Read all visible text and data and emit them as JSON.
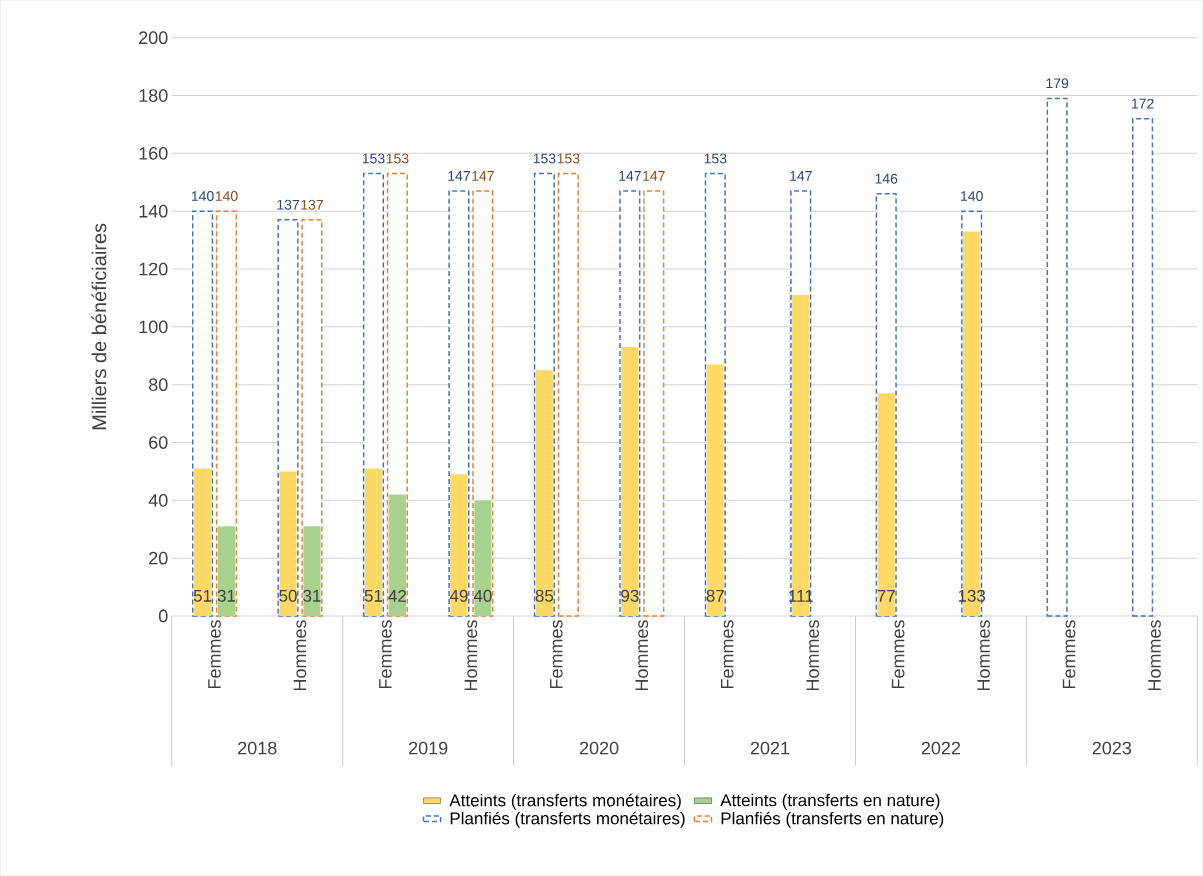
{
  "chart_data": {
    "type": "bar",
    "ylabel": "Milliers de bénéficiaires",
    "categories": [
      "Femmes",
      "Hommes",
      "Femmes",
      "Hommes",
      "Femmes",
      "Hommes",
      "Femmes",
      "Hommes",
      "Femmes",
      "Hommes",
      "Femmes",
      "Hommes"
    ],
    "annotations": [
      "2018",
      "2019",
      "2020",
      "2021",
      "2022",
      "2023"
    ],
    "series": [
      {
        "name": "Atteints (transferts monétaires)",
        "color": "#ffd966",
        "values": [
          51,
          50,
          51,
          49,
          85,
          93,
          87,
          111,
          77,
          133,
          null,
          null
        ]
      },
      {
        "name": "Atteints (transferts en nature)",
        "color": "#a9d18e",
        "values": [
          31,
          31,
          42,
          40,
          null,
          null,
          null,
          null,
          null,
          null,
          null,
          null
        ]
      },
      {
        "name": "Planfiés (transferts monétaires)",
        "color": "#4472c4",
        "line_style": "dashed",
        "values": [
          140,
          137,
          153,
          147,
          153,
          147,
          153,
          147,
          146,
          140,
          179,
          172
        ]
      },
      {
        "name": "Planfiés (transferts en nature)",
        "color": "#ed7d31",
        "line_style": "dashed",
        "values": [
          140,
          137,
          153,
          147,
          153,
          147,
          null,
          null,
          null,
          null,
          null,
          null
        ]
      }
    ],
    "ylim": [
      0,
      200
    ],
    "yticks": [
      0,
      20,
      40,
      60,
      80,
      100,
      120,
      140,
      160,
      180,
      200
    ],
    "grid": "y",
    "legend": "bottom",
    "data_labels": true
  }
}
